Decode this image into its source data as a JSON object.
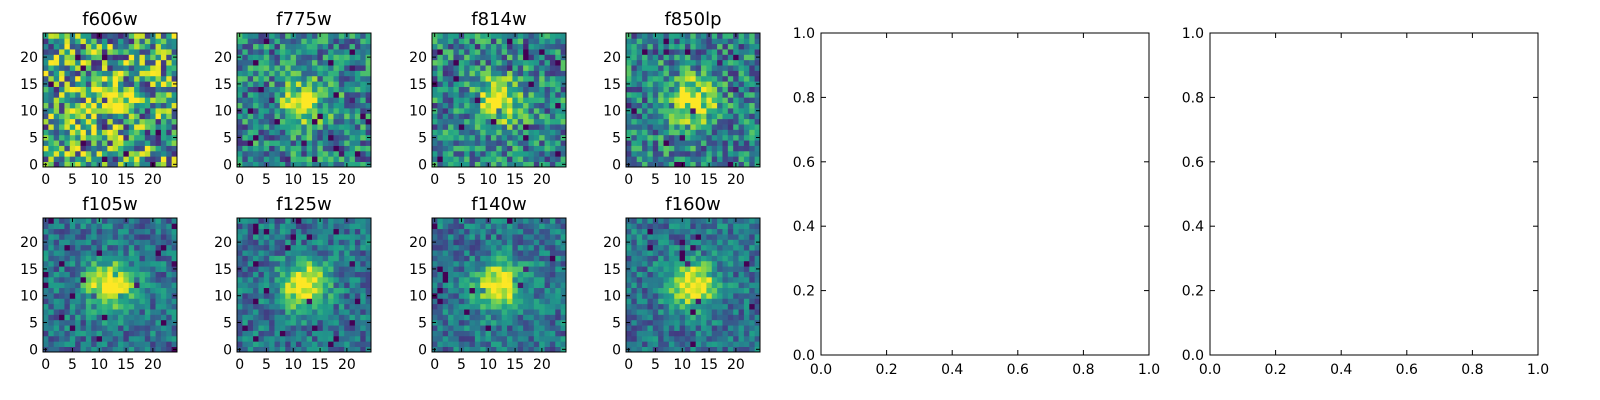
{
  "figure": {
    "background": "#ffffff"
  },
  "colormap": "viridis",
  "chart_data": [
    {
      "type": "heatmap",
      "title": "f606w",
      "grid_size": 25,
      "xticks": [
        0,
        5,
        10,
        15,
        20
      ],
      "yticks": [
        0,
        5,
        10,
        15,
        20
      ],
      "signal": "weak",
      "noise": "high",
      "peak": [
        12,
        12
      ]
    },
    {
      "type": "heatmap",
      "title": "f775w",
      "grid_size": 25,
      "xticks": [
        0,
        5,
        10,
        15,
        20
      ],
      "yticks": [
        0,
        5,
        10,
        15,
        20
      ],
      "signal": "medium",
      "noise": "medium",
      "peak": [
        12,
        12
      ]
    },
    {
      "type": "heatmap",
      "title": "f814w",
      "grid_size": 25,
      "xticks": [
        0,
        5,
        10,
        15,
        20
      ],
      "yticks": [
        0,
        5,
        10,
        15,
        20
      ],
      "signal": "medium",
      "noise": "medium",
      "peak": [
        12,
        12
      ]
    },
    {
      "type": "heatmap",
      "title": "f850lp",
      "grid_size": 25,
      "xticks": [
        0,
        5,
        10,
        15,
        20
      ],
      "yticks": [
        0,
        5,
        10,
        15,
        20
      ],
      "signal": "medium",
      "noise": "medium",
      "peak": [
        12,
        12
      ]
    },
    {
      "type": "heatmap",
      "title": "f105w",
      "grid_size": 25,
      "xticks": [
        0,
        5,
        10,
        15,
        20
      ],
      "yticks": [
        0,
        5,
        10,
        15,
        20
      ],
      "signal": "strong",
      "noise": "low",
      "peak": [
        12,
        12
      ]
    },
    {
      "type": "heatmap",
      "title": "f125w",
      "grid_size": 25,
      "xticks": [
        0,
        5,
        10,
        15,
        20
      ],
      "yticks": [
        0,
        5,
        10,
        15,
        20
      ],
      "signal": "strong",
      "noise": "low",
      "peak": [
        12,
        12
      ]
    },
    {
      "type": "heatmap",
      "title": "f140w",
      "grid_size": 25,
      "xticks": [
        0,
        5,
        10,
        15,
        20
      ],
      "yticks": [
        0,
        5,
        10,
        15,
        20
      ],
      "signal": "strong",
      "noise": "low",
      "peak": [
        12,
        12
      ]
    },
    {
      "type": "heatmap",
      "title": "f160w",
      "grid_size": 25,
      "xticks": [
        0,
        5,
        10,
        15,
        20
      ],
      "yticks": [
        0,
        5,
        10,
        15,
        20
      ],
      "signal": "strong",
      "noise": "low",
      "peak": [
        12,
        12
      ]
    },
    {
      "type": "empty",
      "title": "",
      "xlim": [
        0,
        1
      ],
      "ylim": [
        0,
        1
      ],
      "xticks": [
        "0.0",
        "0.2",
        "0.4",
        "0.6",
        "0.8",
        "1.0"
      ],
      "yticks": [
        "0.0",
        "0.2",
        "0.4",
        "0.6",
        "0.8",
        "1.0"
      ]
    },
    {
      "type": "empty",
      "title": "",
      "xlim": [
        0,
        1
      ],
      "ylim": [
        0,
        1
      ],
      "xticks": [
        "0.0",
        "0.2",
        "0.4",
        "0.6",
        "0.8",
        "1.0"
      ],
      "yticks": [
        "0.0",
        "0.2",
        "0.4",
        "0.6",
        "0.8",
        "1.0"
      ]
    }
  ]
}
